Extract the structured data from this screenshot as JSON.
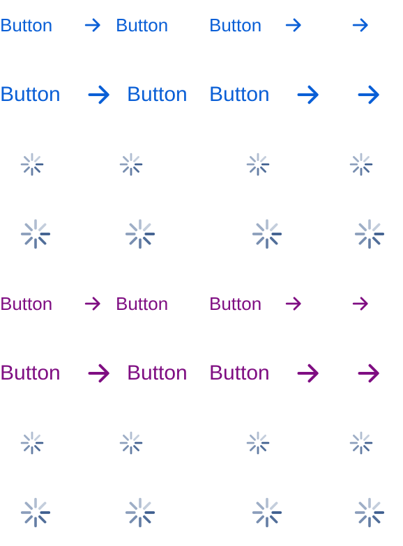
{
  "colors": {
    "primary": "#0A5FD6",
    "secondary": "#7F0E82",
    "spinner": "#3F5F8F"
  },
  "button_label": "Button",
  "icons": {
    "arrow": "arrow-right-icon",
    "spinner": "loading-spinner-icon"
  },
  "rows": [
    {
      "variant": "primary",
      "size": "small",
      "state": "default"
    },
    {
      "variant": "primary",
      "size": "large",
      "state": "default"
    },
    {
      "variant": "primary",
      "size": "small",
      "state": "loading"
    },
    {
      "variant": "primary",
      "size": "large",
      "state": "loading"
    },
    {
      "variant": "secondary",
      "size": "small",
      "state": "default"
    },
    {
      "variant": "secondary",
      "size": "large",
      "state": "default"
    },
    {
      "variant": "secondary",
      "size": "small",
      "state": "loading"
    },
    {
      "variant": "secondary",
      "size": "large",
      "state": "loading"
    }
  ]
}
